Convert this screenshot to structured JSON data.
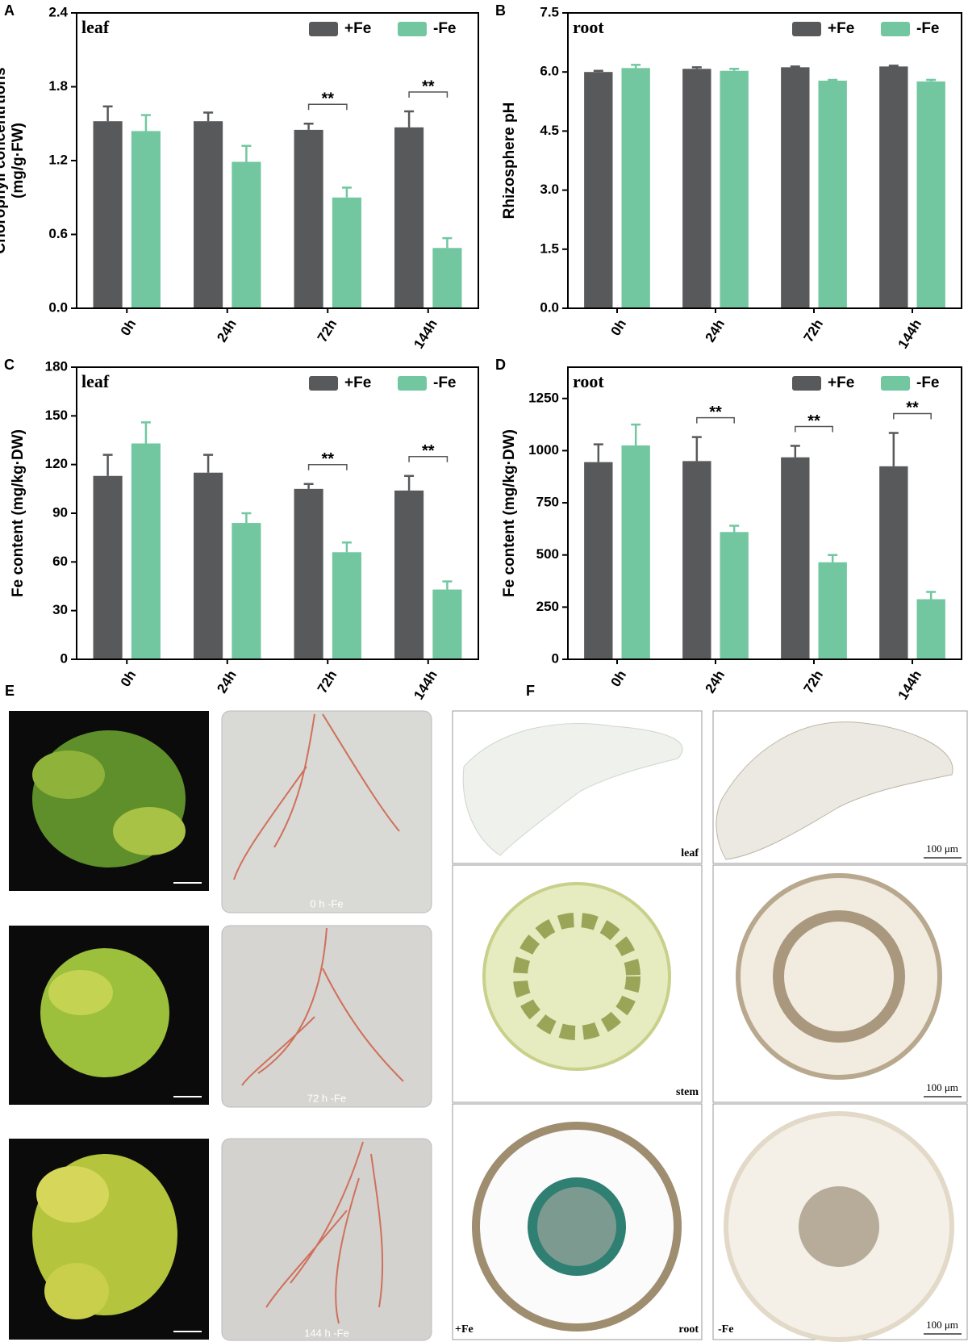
{
  "chart_data": [
    {
      "type": "bar",
      "panel": "A",
      "subtitle": "leaf",
      "ylabel": [
        "Chorophyll concentrtions",
        "(mg/g·FW)"
      ],
      "categories": [
        "0h",
        "24h",
        "72h",
        "144h"
      ],
      "series": [
        {
          "name": "+Fe",
          "color": "#58595b",
          "values": [
            1.52,
            1.52,
            1.45,
            1.47
          ],
          "errors": [
            0.12,
            0.07,
            0.05,
            0.13
          ]
        },
        {
          "name": "-Fe",
          "color": "#72c7a0",
          "values": [
            1.44,
            1.19,
            0.9,
            0.49
          ],
          "errors": [
            0.13,
            0.13,
            0.08,
            0.08
          ]
        }
      ],
      "significance": [
        {
          "x": "72h",
          "label": "**"
        },
        {
          "x": "144h",
          "label": "**"
        }
      ],
      "ylim": [
        0,
        2.4
      ],
      "yticks": [
        {
          "value": 0,
          "label": "0.0"
        },
        0.6,
        1.2,
        1.8,
        2.4
      ],
      "legend": "top-right"
    },
    {
      "type": "bar",
      "panel": "B",
      "subtitle": "root",
      "ylabel": [
        "Rhizosphere pH"
      ],
      "categories": [
        "0h",
        "24h",
        "72h",
        "144h"
      ],
      "series": [
        {
          "name": "+Fe",
          "color": "#58595b",
          "values": [
            6.0,
            6.08,
            6.12,
            6.14
          ],
          "errors": [
            0.03,
            0.04,
            0.02,
            0.02
          ]
        },
        {
          "name": "-Fe",
          "color": "#72c7a0",
          "values": [
            6.1,
            6.03,
            5.78,
            5.76
          ],
          "errors": [
            0.08,
            0.05,
            0.02,
            0.04
          ]
        }
      ],
      "significance": [],
      "ylim": [
        0,
        7.5
      ],
      "yticks": [
        {
          "value": 0,
          "label": "0.0"
        },
        1.5,
        {
          "value": 3,
          "label": "3.0"
        },
        4.5,
        {
          "value": 6,
          "label": "6.0"
        },
        7.5
      ],
      "legend": "top-right"
    },
    {
      "type": "bar",
      "panel": "C",
      "subtitle": "leaf",
      "ylabel": [
        "Fe content (mg/kg·DW)"
      ],
      "categories": [
        "0h",
        "24h",
        "72h",
        "144h"
      ],
      "series": [
        {
          "name": "+Fe",
          "color": "#58595b",
          "values": [
            113,
            115,
            105,
            104
          ],
          "errors": [
            13,
            11,
            3,
            9
          ]
        },
        {
          "name": "-Fe",
          "color": "#72c7a0",
          "values": [
            133,
            84,
            66,
            43
          ],
          "errors": [
            13,
            6,
            6,
            5
          ]
        }
      ],
      "significance": [
        {
          "x": "72h",
          "label": "**"
        },
        {
          "x": "144h",
          "label": "**"
        }
      ],
      "ylim": [
        0,
        180
      ],
      "yticks": [
        0,
        30,
        60,
        90,
        120,
        150,
        180
      ],
      "legend": "top-right"
    },
    {
      "type": "bar",
      "panel": "D",
      "subtitle": "root",
      "ylabel": [
        "Fe content (mg/kg·DW)"
      ],
      "categories": [
        "0h",
        "24h",
        "72h",
        "144h"
      ],
      "series": [
        {
          "name": "+Fe",
          "color": "#58595b",
          "values": [
            945,
            950,
            968,
            925
          ],
          "errors": [
            85,
            115,
            55,
            160
          ]
        },
        {
          "name": "-Fe",
          "color": "#72c7a0",
          "values": [
            1025,
            610,
            465,
            288
          ],
          "errors": [
            100,
            30,
            35,
            35
          ]
        }
      ],
      "significance": [
        {
          "x": "24h",
          "label": "**"
        },
        {
          "x": "72h",
          "label": "**"
        },
        {
          "x": "144h",
          "label": "**"
        }
      ],
      "ylim": [
        0,
        1400
      ],
      "yticks": [
        0,
        250,
        500,
        750,
        1000,
        1250
      ],
      "legend": "top-right"
    }
  ],
  "panel_E": {
    "label": "E",
    "captions": [
      "0 h -Fe",
      "72 h -Fe",
      "144 h -Fe"
    ]
  },
  "panel_F": {
    "label": "F",
    "tissues": [
      "leaf",
      "stem",
      "root"
    ],
    "scale_bars": [
      "100 μm",
      "100 μm",
      "100 μm"
    ],
    "treatments": [
      "+Fe",
      "-Fe"
    ]
  }
}
